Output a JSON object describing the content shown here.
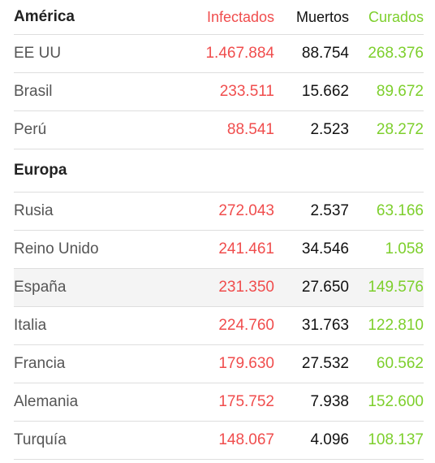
{
  "colors": {
    "infectados": "#f04d4d",
    "muertos": "#111111",
    "curados": "#7dcf2c"
  },
  "headers": {
    "infectados": "Infectados",
    "muertos": "Muertos",
    "curados": "Curados"
  },
  "america": {
    "title": "América",
    "rows": [
      {
        "country": "EE UU",
        "infectados": "1.467.884",
        "muertos": "88.754",
        "curados": "268.376"
      },
      {
        "country": "Brasil",
        "infectados": "233.511",
        "muertos": "15.662",
        "curados": "89.672"
      },
      {
        "country": "Perú",
        "infectados": "88.541",
        "muertos": "2.523",
        "curados": "28.272"
      }
    ]
  },
  "europa": {
    "title": "Europa",
    "rows": [
      {
        "country": "Rusia",
        "infectados": "272.043",
        "muertos": "2.537",
        "curados": "63.166"
      },
      {
        "country": "Reino Unido",
        "infectados": "241.461",
        "muertos": "34.546",
        "curados": "1.058"
      },
      {
        "country": "España",
        "infectados": "231.350",
        "muertos": "27.650",
        "curados": "149.576"
      },
      {
        "country": "Italia",
        "infectados": "224.760",
        "muertos": "31.763",
        "curados": "122.810"
      },
      {
        "country": "Francia",
        "infectados": "179.630",
        "muertos": "27.532",
        "curados": "60.562"
      },
      {
        "country": "Alemania",
        "infectados": "175.752",
        "muertos": "7.938",
        "curados": "152.600"
      },
      {
        "country": "Turquía",
        "infectados": "148.067",
        "muertos": "4.096",
        "curados": "108.137"
      }
    ]
  }
}
